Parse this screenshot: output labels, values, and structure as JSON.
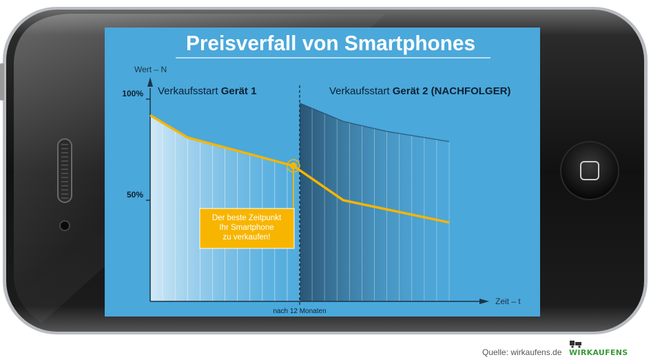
{
  "colors": {
    "screen": "#4aa8db",
    "line": "#f7b500",
    "callout_bg": "#f7b500",
    "axis": "#1d3344",
    "grid_strong": "#0e2030",
    "brand": "#3a9a3a"
  },
  "chart_data": {
    "type": "line",
    "title": "Preisverfall von Smartphones",
    "ylabel": "Wert – N",
    "xlabel": "Zeit – t",
    "y_ticks": [
      {
        "value": 100,
        "label": "100%"
      },
      {
        "value": 50,
        "label": "50%"
      }
    ],
    "ylim": [
      0,
      105
    ],
    "xlim": [
      0,
      24
    ],
    "x_marker": {
      "value": 12,
      "label": "nach 12 Monaten"
    },
    "annotations": {
      "device1_prefix": "Verkaufsstart ",
      "device1_bold": "Gerät 1",
      "device2_prefix": "Verkaufsstart ",
      "device2_bold": "Gerät 2 (NACHFOLGER)"
    },
    "callout": {
      "lines": [
        "Der beste Zeitpunkt",
        "Ihr Smartphone",
        "zu verkaufen!"
      ],
      "x": 11.5,
      "y": 67
    },
    "series": [
      {
        "points": [
          [
            0,
            92
          ],
          [
            3,
            81
          ],
          [
            11.5,
            67
          ],
          [
            15.5,
            50
          ],
          [
            24,
            39
          ]
        ]
      },
      {
        "points": [
          [
            12,
            98
          ],
          [
            15.5,
            89
          ],
          [
            19,
            84
          ],
          [
            24,
            79
          ]
        ]
      }
    ]
  },
  "footer": {
    "source": "Quelle: wirkaufens.de",
    "brand": "WIRKAUFENS"
  }
}
